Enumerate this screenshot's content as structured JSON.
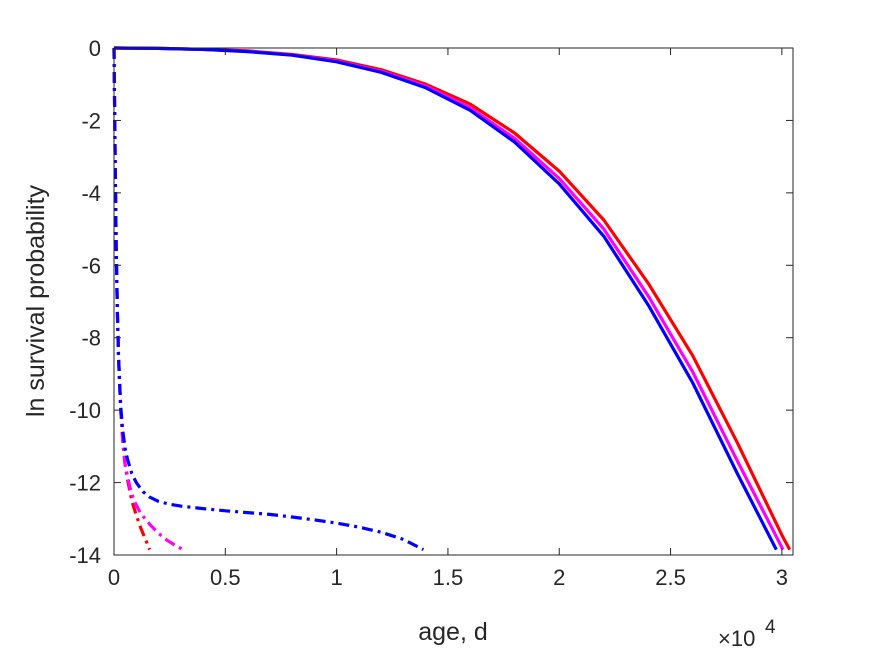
{
  "chart_data": {
    "type": "line",
    "xlabel": "age, d",
    "ylabel": "ln survival probability",
    "x_multiplier": "×10",
    "x_multiplier_exponent": "4",
    "xlim": [
      0,
      30500
    ],
    "ylim": [
      -14,
      0
    ],
    "xticks": [
      0,
      5000,
      10000,
      15000,
      20000,
      25000,
      30000
    ],
    "xtick_labels": [
      "0",
      "0.5",
      "1",
      "1.5",
      "2",
      "2.5",
      "3"
    ],
    "yticks": [
      0,
      -2,
      -4,
      -6,
      -8,
      -10,
      -12,
      -14
    ],
    "ytick_labels": [
      "0",
      "-2",
      "-4",
      "-6",
      "-8",
      "-10",
      "-12",
      "-14"
    ],
    "grid": false,
    "series": [
      {
        "color": "#ff0000",
        "style": "solid",
        "x": [
          0,
          2000,
          4000,
          6000,
          8000,
          10000,
          12000,
          14000,
          16000,
          18000,
          20000,
          22000,
          24000,
          26000,
          28000,
          30000,
          30350
        ],
        "y": [
          0,
          -0.01,
          -0.04,
          -0.08,
          -0.18,
          -0.33,
          -0.6,
          -1.0,
          -1.55,
          -2.35,
          -3.4,
          -4.75,
          -6.5,
          -8.5,
          -10.9,
          -13.45,
          -13.85
        ]
      },
      {
        "color": "#ff00ff",
        "style": "solid",
        "x": [
          0,
          2000,
          4000,
          6000,
          8000,
          10000,
          12000,
          14000,
          16000,
          18000,
          20000,
          22000,
          24000,
          26000,
          28000,
          29800,
          30050
        ],
        "y": [
          0,
          -0.01,
          -0.04,
          -0.09,
          -0.19,
          -0.36,
          -0.64,
          -1.05,
          -1.65,
          -2.5,
          -3.6,
          -5.0,
          -6.85,
          -8.95,
          -11.4,
          -13.55,
          -13.85
        ]
      },
      {
        "color": "#0000ff",
        "style": "solid",
        "x": [
          0,
          2000,
          4000,
          6000,
          8000,
          10000,
          12000,
          14000,
          16000,
          18000,
          20000,
          22000,
          24000,
          26000,
          28000,
          29500,
          29750
        ],
        "y": [
          0,
          -0.01,
          -0.04,
          -0.1,
          -0.2,
          -0.38,
          -0.67,
          -1.1,
          -1.72,
          -2.6,
          -3.75,
          -5.2,
          -7.1,
          -9.25,
          -11.75,
          -13.55,
          -13.85
        ]
      },
      {
        "color": "#ff0000",
        "style": "dashdot",
        "x": [
          0,
          50,
          100,
          150,
          200,
          300,
          400,
          500,
          600,
          800,
          1000,
          1200,
          1400,
          1600
        ],
        "y": [
          0,
          -3.0,
          -5.5,
          -7.2,
          -8.5,
          -10.0,
          -10.9,
          -11.5,
          -11.9,
          -12.5,
          -12.9,
          -13.25,
          -13.55,
          -13.85
        ]
      },
      {
        "color": "#ff00ff",
        "style": "dashdot",
        "x": [
          0,
          50,
          100,
          150,
          200,
          300,
          400,
          500,
          700,
          900,
          1200,
          1600,
          2000,
          2400,
          2800,
          3100
        ],
        "y": [
          0,
          -3.0,
          -5.5,
          -7.2,
          -8.5,
          -10.0,
          -10.9,
          -11.5,
          -12.1,
          -12.5,
          -12.85,
          -13.15,
          -13.4,
          -13.6,
          -13.75,
          -13.85
        ]
      },
      {
        "color": "#0000ff",
        "style": "dashdot",
        "x": [
          0,
          50,
          100,
          150,
          200,
          300,
          400,
          500,
          600,
          800,
          1000,
          1300,
          1600,
          2000,
          2500,
          3000,
          4000,
          5000,
          6000,
          7000,
          8000,
          9000,
          10000,
          11000,
          12000,
          13000,
          13900
        ],
        "y": [
          0,
          -3.0,
          -5.5,
          -7.2,
          -8.5,
          -9.9,
          -10.6,
          -11.05,
          -11.35,
          -11.75,
          -12.0,
          -12.25,
          -12.4,
          -12.52,
          -12.6,
          -12.65,
          -12.72,
          -12.78,
          -12.83,
          -12.88,
          -12.95,
          -13.03,
          -13.12,
          -13.23,
          -13.37,
          -13.57,
          -13.85
        ]
      }
    ]
  }
}
